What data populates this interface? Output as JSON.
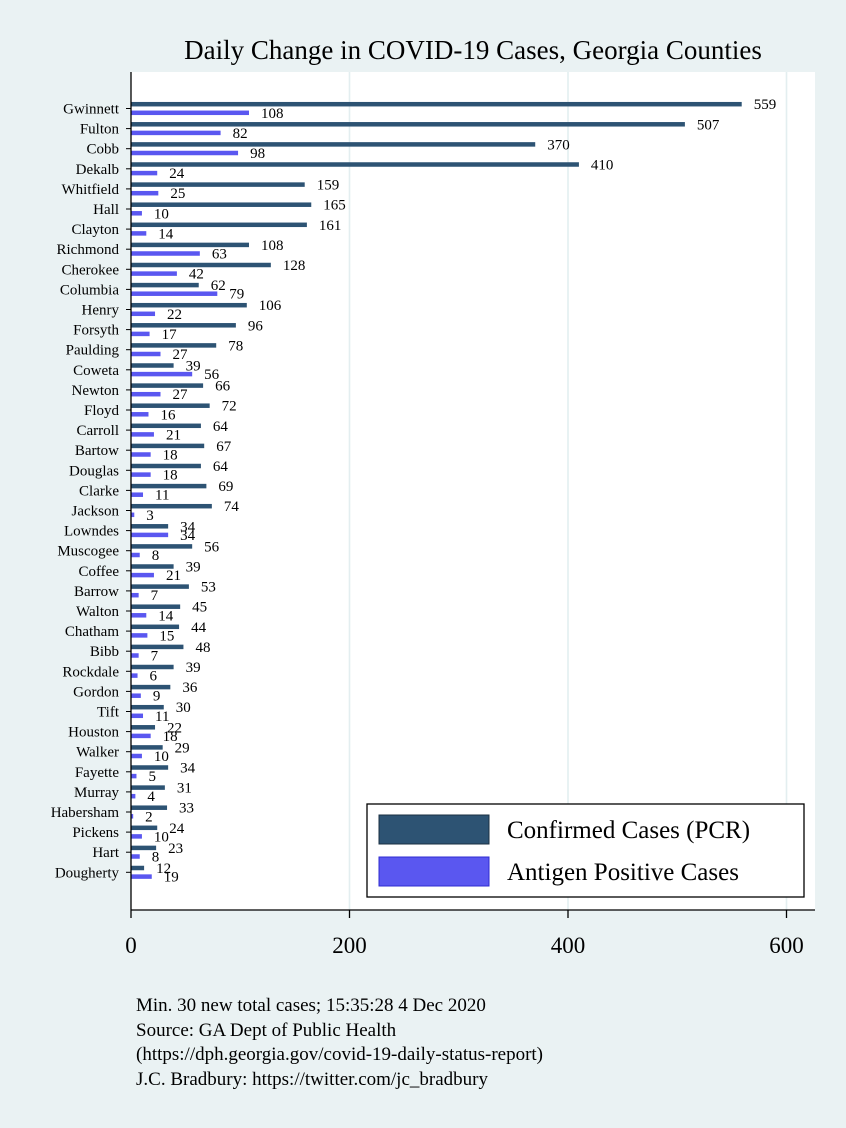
{
  "chart_data": {
    "type": "bar",
    "orientation": "horizontal",
    "title": "Daily Change in COVID-19 Cases, Georgia Counties",
    "xlabel": "",
    "ylabel": "",
    "xlim": [
      0,
      600
    ],
    "xticks": [
      0,
      200,
      400,
      600
    ],
    "grid": true,
    "legend_position": "bottom-right",
    "categories": [
      "Gwinnett",
      "Fulton",
      "Cobb",
      "Dekalb",
      "Whitfield",
      "Hall",
      "Clayton",
      "Richmond",
      "Cherokee",
      "Columbia",
      "Henry",
      "Forsyth",
      "Paulding",
      "Coweta",
      "Newton",
      "Floyd",
      "Carroll",
      "Bartow",
      "Douglas",
      "Clarke",
      "Jackson",
      "Lowndes",
      "Muscogee",
      "Coffee",
      "Barrow",
      "Walton",
      "Chatham",
      "Bibb",
      "Rockdale",
      "Gordon",
      "Tift",
      "Houston",
      "Walker",
      "Fayette",
      "Murray",
      "Habersham",
      "Pickens",
      "Hart",
      "Dougherty"
    ],
    "series": [
      {
        "name": "Confirmed Cases (PCR)",
        "color": "#2d5373",
        "values": [
          559,
          507,
          370,
          410,
          159,
          165,
          161,
          108,
          128,
          62,
          106,
          96,
          78,
          39,
          66,
          72,
          64,
          67,
          64,
          69,
          74,
          34,
          56,
          39,
          53,
          45,
          44,
          48,
          39,
          36,
          30,
          22,
          29,
          34,
          31,
          33,
          24,
          23,
          12
        ]
      },
      {
        "name": "Antigen Positive Cases",
        "color": "#5a57f0",
        "values": [
          108,
          82,
          98,
          24,
          25,
          10,
          14,
          63,
          42,
          79,
          22,
          17,
          27,
          56,
          27,
          16,
          21,
          18,
          18,
          11,
          3,
          34,
          8,
          21,
          7,
          14,
          15,
          7,
          6,
          9,
          11,
          18,
          10,
          5,
          4,
          2,
          10,
          8,
          19
        ]
      }
    ]
  },
  "footnotes": [
    "Min. 30 new total cases; 15:35:28   4 Dec 2020",
    "Source: GA Dept of Public Health",
    "(https://dph.georgia.gov/covid-19-daily-status-report)",
    "J.C. Bradbury: https://twitter.com/jc_bradbury"
  ]
}
